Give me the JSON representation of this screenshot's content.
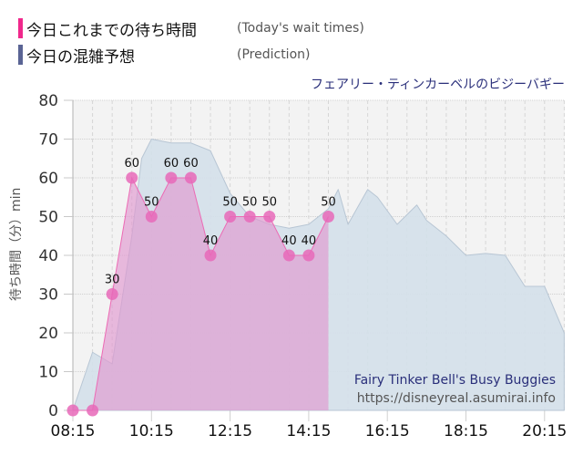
{
  "legend": {
    "items": [
      {
        "label_jp": "今日これまでの待ち時間",
        "label_en": "(Today's wait times)",
        "color": "#f0288c"
      },
      {
        "label_jp": "今日の混雑予想",
        "label_en": "(Prediction)",
        "color": "#5a6494"
      }
    ]
  },
  "ride_title": "フェアリー・ティンカーベルのビジーバギー",
  "watermark": {
    "name": "Fairy Tinker Bell's Busy Buggies",
    "url": "https://disneyreal.asumirai.info"
  },
  "colors": {
    "actual_fill": "#e098d0",
    "actual_line": "#ec6ab4",
    "actual_marker": "#e868b8",
    "prediction_fill": "#d4e0ea",
    "prediction_line": "#b8c6d4",
    "plot_bg": "#f3f3f3"
  },
  "chart_data": {
    "type": "area",
    "title": "フェアリー・ティンカーベルのビジーバギー",
    "xlabel": "",
    "ylabel": "待ち時間（分）min",
    "ylim": [
      0,
      80
    ],
    "yticks": [
      0,
      10,
      20,
      30,
      40,
      50,
      60,
      70,
      80
    ],
    "xticks": [
      "08:15",
      "10:15",
      "12:15",
      "14:15",
      "16:15",
      "18:15",
      "20:15"
    ],
    "grid": true,
    "legend_position": "top-left",
    "series": [
      {
        "name": "今日これまでの待ち時間 (Today's wait times)",
        "type": "area-line-markers",
        "x": [
          "08:15",
          "08:45",
          "09:15",
          "09:45",
          "10:15",
          "10:45",
          "11:15",
          "11:45",
          "12:15",
          "12:45",
          "13:15",
          "13:45",
          "14:15",
          "14:45"
        ],
        "values": [
          0,
          0,
          30,
          60,
          50,
          60,
          60,
          40,
          50,
          50,
          50,
          40,
          40,
          50
        ],
        "labels": [
          "",
          "",
          "30",
          "60",
          "50",
          "60",
          "60",
          "40",
          "50",
          "50",
          "50",
          "40",
          "40",
          "50"
        ]
      },
      {
        "name": "今日の混雑予想 (Prediction)",
        "type": "area",
        "x": [
          "08:15",
          "08:45",
          "09:15",
          "09:45",
          "10:00",
          "10:15",
          "10:45",
          "11:15",
          "11:45",
          "12:15",
          "12:45",
          "13:15",
          "13:45",
          "14:15",
          "14:45",
          "15:00",
          "15:15",
          "15:45",
          "16:00",
          "16:30",
          "17:00",
          "17:15",
          "17:45",
          "18:15",
          "18:45",
          "19:15",
          "19:45",
          "20:15",
          "20:45"
        ],
        "values": [
          0,
          15,
          12,
          45,
          65,
          70,
          69,
          69,
          67,
          56,
          50,
          48,
          47,
          48,
          52,
          57,
          48,
          57,
          55,
          48,
          53,
          49,
          45,
          40,
          40.5,
          40,
          32,
          32,
          20
        ]
      }
    ]
  }
}
